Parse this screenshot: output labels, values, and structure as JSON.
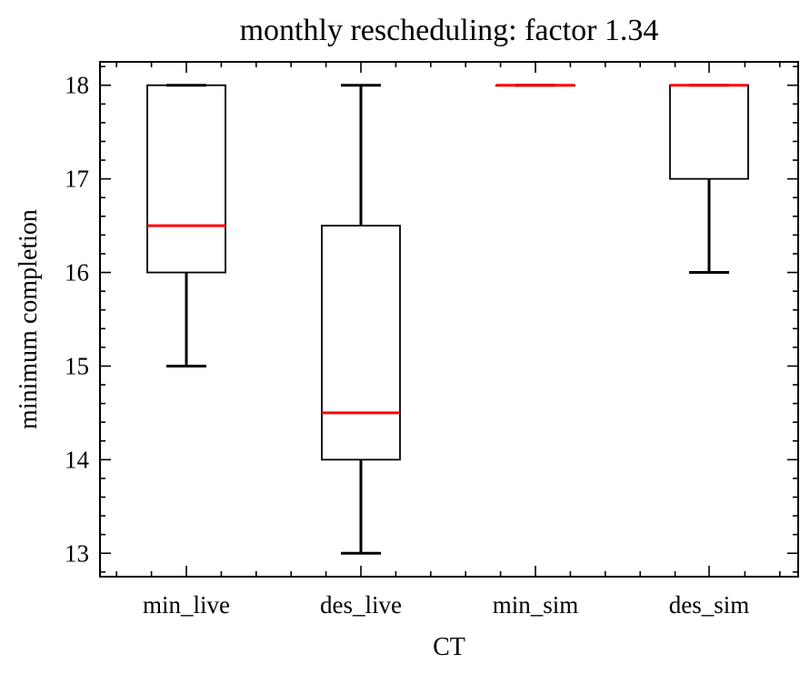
{
  "chart_data": {
    "type": "box",
    "title": "monthly rescheduling: factor 1.34",
    "xlabel": "CT",
    "ylabel": "minimum completion",
    "ylim": [
      12.75,
      18.25
    ],
    "yticks": [
      13,
      14,
      15,
      16,
      17,
      18
    ],
    "categories": [
      "min_live",
      "des_live",
      "min_sim",
      "des_sim"
    ],
    "boxes": [
      {
        "label": "min_live",
        "whislo": 15,
        "q1": 16,
        "med": 16.5,
        "q3": 18,
        "whishi": 18
      },
      {
        "label": "des_live",
        "whislo": 13,
        "q1": 14,
        "med": 14.5,
        "q3": 16.5,
        "whishi": 18
      },
      {
        "label": "min_sim",
        "whislo": 18,
        "q1": 18,
        "med": 18,
        "q3": 18,
        "whishi": 18
      },
      {
        "label": "des_sim",
        "whislo": 16,
        "q1": 17,
        "med": 18,
        "q3": 18,
        "whishi": 18
      }
    ],
    "grid": false,
    "colors": {
      "box": "#000000",
      "median": "#ff0000"
    }
  }
}
